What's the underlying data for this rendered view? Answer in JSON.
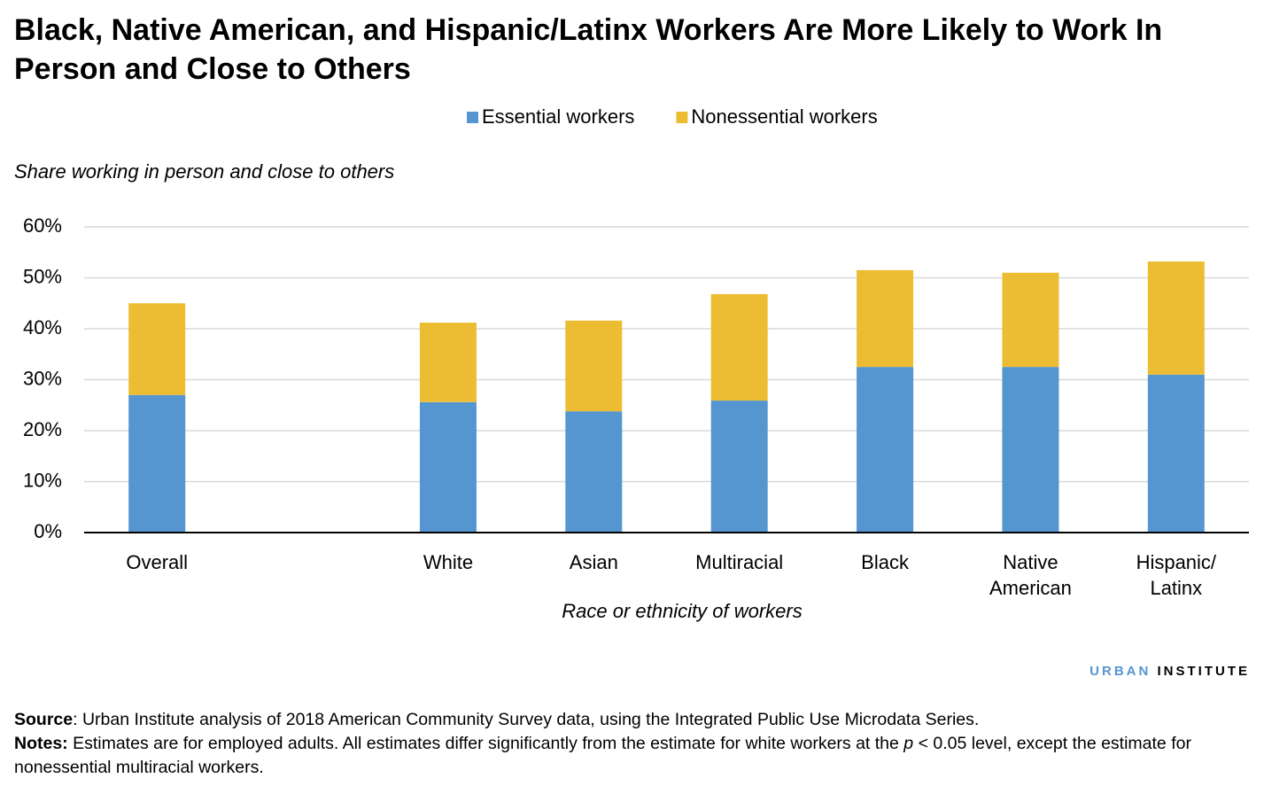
{
  "chart_data": {
    "type": "stacked-bar",
    "title": "Black, Native American, and Hispanic/Latinx Workers Are More Likely to Work In Person and Close to Others",
    "y_label": "Share working in person and close to others",
    "x_label": "Race  or ethnicity of workers",
    "categories": [
      "Overall",
      null,
      "White",
      "Asian",
      "Multiracial",
      "Black",
      "Native American",
      "Hispanic/ Latinx"
    ],
    "series": [
      {
        "name": "Essential workers",
        "color": "#5596d1",
        "values": [
          27,
          null,
          25.6,
          23.8,
          25.9,
          32.5,
          32.5,
          31.0
        ]
      },
      {
        "name": "Nonessential workers",
        "color": "#ecbd33",
        "values": [
          18,
          null,
          15.6,
          17.8,
          20.9,
          19.0,
          18.5,
          22.2
        ]
      }
    ],
    "ylim": [
      0,
      60
    ],
    "yticks": [
      {
        "value": 0,
        "label": "0%"
      },
      {
        "value": 10,
        "label": "10%"
      },
      {
        "value": 20,
        "label": "20%"
      },
      {
        "value": 30,
        "label": "30%"
      },
      {
        "value": 40,
        "label": "40%"
      },
      {
        "value": 50,
        "label": "50%"
      },
      {
        "value": 60,
        "label": "60%"
      }
    ],
    "grid": true,
    "legend": "top"
  },
  "logo": {
    "part1": "URBAN",
    "part2": "INSTITUTE"
  },
  "footer": {
    "source_label": "Source",
    "source_text": ": Urban Institute analysis of 2018 American Community Survey data, using the Integrated Public Use Microdata Series.",
    "notes_label": "Notes:",
    "notes_text1": " Estimates are for employed adults. All estimates differ significantly from the estimate for white workers at the ",
    "notes_italic": "p",
    "notes_text2": " < 0.05 level, except the estimate for nonessential multiracial workers."
  }
}
